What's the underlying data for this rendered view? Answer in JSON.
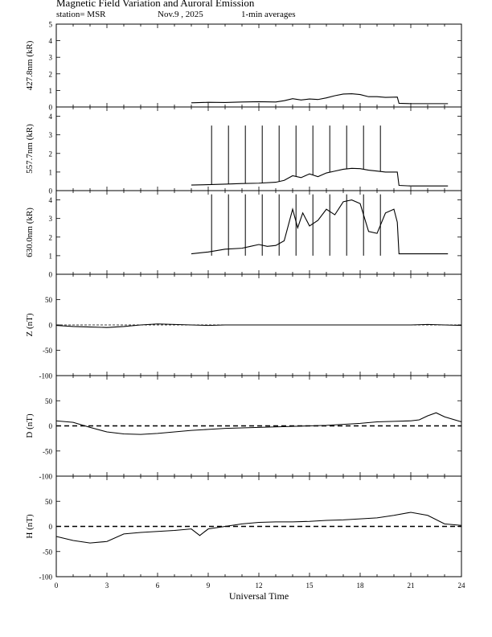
{
  "header": {
    "title": "Magnetic Field Variation and Auroral Emission",
    "station": "station= MSR",
    "date": "Nov.9 , 2025",
    "averaging": "1-min averages"
  },
  "chart_data": [
    {
      "type": "line",
      "ylabel": "427.8nm (kR)",
      "ylim": [
        0,
        5
      ],
      "yticks": [
        0,
        1,
        2,
        3,
        4,
        5
      ],
      "xlim": [
        0,
        24
      ],
      "series": [
        {
          "x": [
            8.0,
            9,
            10,
            11,
            12,
            13,
            13.5,
            14,
            14.5,
            15,
            15.5,
            16,
            16.5,
            17,
            17.5,
            18,
            18.5,
            19,
            19.5,
            20.2,
            20.3,
            21,
            22,
            23.2
          ],
          "y": [
            0.25,
            0.28,
            0.27,
            0.3,
            0.32,
            0.3,
            0.38,
            0.5,
            0.42,
            0.48,
            0.45,
            0.55,
            0.68,
            0.78,
            0.8,
            0.75,
            0.62,
            0.62,
            0.58,
            0.6,
            0.22,
            0.2,
            0.2,
            0.2
          ]
        }
      ]
    },
    {
      "type": "line",
      "ylabel": "557.7nm (kR)",
      "ylim": [
        0,
        4.5
      ],
      "yticks": [
        0,
        1,
        2,
        3,
        4
      ],
      "xlim": [
        0,
        24
      ],
      "series": [
        {
          "x": [
            8.0,
            9,
            10,
            11,
            12,
            13,
            13.5,
            14,
            14.5,
            15,
            15.5,
            16,
            16.5,
            17,
            17.5,
            18,
            18.5,
            19,
            19.5,
            20.2,
            20.3,
            21,
            22,
            23.2
          ],
          "y": [
            0.3,
            0.32,
            0.35,
            0.38,
            0.4,
            0.45,
            0.55,
            0.8,
            0.7,
            0.9,
            0.75,
            0.95,
            1.05,
            1.15,
            1.2,
            1.18,
            1.1,
            1.05,
            1.0,
            1.0,
            0.28,
            0.25,
            0.25,
            0.25
          ]
        }
      ],
      "spikes": {
        "x": [
          9.2,
          10.2,
          11.2,
          12.2,
          13.2,
          14.2,
          15.2,
          16.2,
          17.2,
          18.2,
          19.2
        ],
        "y": 3.5
      }
    },
    {
      "type": "line",
      "ylabel": "630.0nm (kR)",
      "ylim": [
        0,
        4.5
      ],
      "yticks": [
        0,
        1,
        2,
        3,
        4
      ],
      "xlim": [
        0,
        24
      ],
      "series": [
        {
          "x": [
            8.0,
            9,
            10,
            11,
            11.5,
            12,
            12.5,
            13,
            13.5,
            14,
            14.3,
            14.6,
            15,
            15.5,
            16,
            16.5,
            17,
            17.5,
            18,
            18.5,
            19,
            19.5,
            20,
            20.2,
            20.3,
            21,
            22,
            23.2
          ],
          "y": [
            1.1,
            1.2,
            1.35,
            1.4,
            1.5,
            1.6,
            1.5,
            1.55,
            1.8,
            3.5,
            2.5,
            3.3,
            2.6,
            2.9,
            3.5,
            3.2,
            3.9,
            4.0,
            3.8,
            2.3,
            2.2,
            3.3,
            3.5,
            2.8,
            1.1,
            1.1,
            1.1,
            1.1
          ]
        }
      ],
      "spikes": {
        "x": [
          9.2,
          10.2,
          11.2,
          12.2,
          13.2,
          14.2,
          15.2,
          16.2,
          17.2,
          18.2,
          19.2
        ],
        "y": 4.3,
        "y_bottom": 1.0
      }
    },
    {
      "type": "line",
      "ylabel": "Z (nT)",
      "ylim": [
        -100,
        100
      ],
      "yticks": [
        -100,
        -50,
        0,
        50
      ],
      "xlim": [
        0,
        24
      ],
      "baseline": "dashed",
      "series": [
        {
          "x": [
            0,
            1,
            2,
            3,
            4,
            5,
            6,
            7,
            8,
            9,
            10,
            11,
            12,
            13,
            14,
            15,
            16,
            17,
            18,
            19,
            20,
            21,
            22,
            23,
            24
          ],
          "y": [
            -1,
            -3,
            -4,
            -5,
            -3,
            0,
            2,
            1,
            0,
            -1,
            0,
            0,
            0,
            0,
            0,
            0,
            0,
            0,
            0,
            0,
            0,
            0,
            1,
            0,
            -1
          ]
        }
      ]
    },
    {
      "type": "line",
      "ylabel": "D (nT)",
      "ylim": [
        -100,
        100
      ],
      "yticks": [
        -100,
        -50,
        0,
        50
      ],
      "xlim": [
        0,
        24
      ],
      "baseline": "dashed",
      "series": [
        {
          "x": [
            0,
            1,
            2,
            3,
            4,
            5,
            6,
            7,
            8,
            9,
            10,
            11,
            12,
            13,
            14,
            15,
            16,
            17,
            18,
            19,
            20,
            21,
            21.5,
            22,
            22.5,
            23,
            24
          ],
          "y": [
            10,
            7,
            -3,
            -12,
            -16,
            -17,
            -15,
            -12,
            -9,
            -7,
            -5,
            -4,
            -3,
            -2,
            -1,
            0,
            1,
            3,
            5,
            8,
            9,
            10,
            12,
            20,
            26,
            18,
            8
          ]
        }
      ]
    },
    {
      "type": "line",
      "ylabel": "H (nT)",
      "ylim": [
        -100,
        100
      ],
      "yticks": [
        -100,
        -50,
        0,
        50
      ],
      "xlim": [
        0,
        24
      ],
      "xticks": [
        0,
        3,
        6,
        9,
        12,
        15,
        18,
        21,
        24
      ],
      "xlabel": "Universal Time",
      "baseline": "dashed",
      "series": [
        {
          "x": [
            0,
            1,
            2,
            3,
            4,
            5,
            6,
            7,
            8,
            8.5,
            9,
            10,
            11,
            12,
            13,
            14,
            15,
            16,
            17,
            18,
            19,
            20,
            21,
            22,
            23,
            24
          ],
          "y": [
            -20,
            -28,
            -33,
            -30,
            -15,
            -12,
            -10,
            -8,
            -5,
            -18,
            -5,
            0,
            5,
            8,
            9,
            9,
            10,
            12,
            13,
            15,
            17,
            22,
            28,
            22,
            5,
            2
          ]
        }
      ]
    }
  ]
}
